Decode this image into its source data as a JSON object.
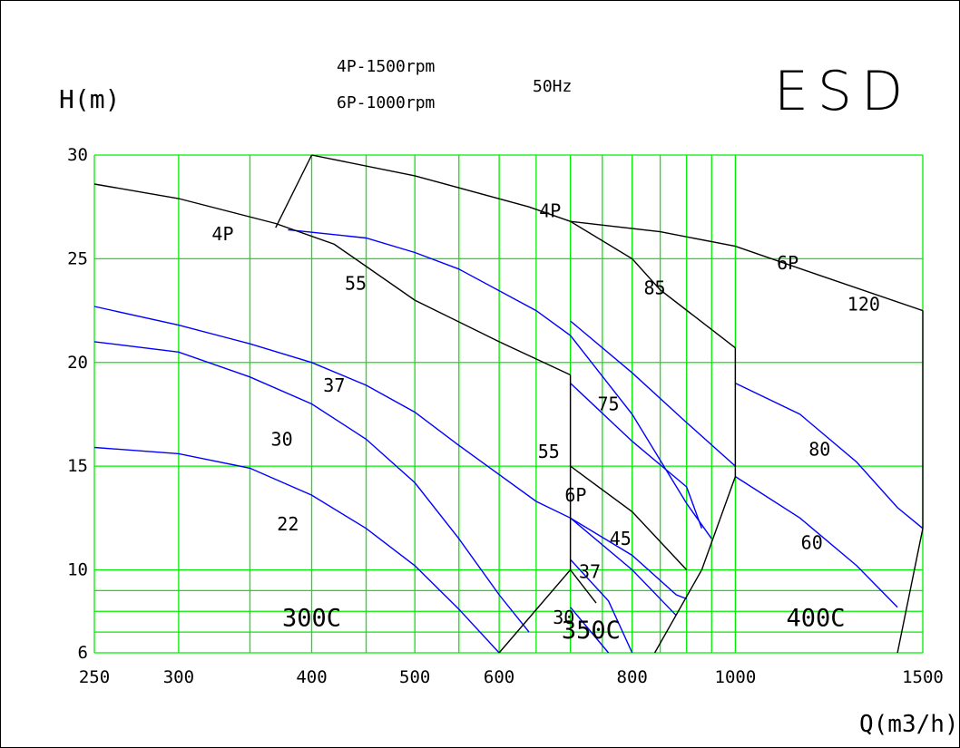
{
  "header": {
    "speed_4p": "4P-1500rpm",
    "speed_6p": "6P-1000rpm",
    "frequency": "50Hz",
    "brand": "ESD"
  },
  "chart_data": {
    "type": "line",
    "xlabel": "Q(m3/h)",
    "ylabel": "H(m)",
    "x_scale": "log",
    "xlim": [
      250,
      1500
    ],
    "ylim": [
      6,
      30
    ],
    "x_ticks": [
      250,
      300,
      400,
      500,
      600,
      800,
      1000,
      1500
    ],
    "y_ticks": [
      6,
      10,
      15,
      20,
      25,
      30
    ],
    "x_gridlines": [
      250,
      300,
      350,
      400,
      450,
      500,
      550,
      600,
      650,
      700,
      750,
      800,
      850,
      900,
      950,
      1000,
      1500
    ],
    "y_gridlines": [
      6,
      7,
      8,
      9,
      10,
      15,
      20,
      25,
      30
    ],
    "grid": true,
    "colors": {
      "grid": "#00ee00",
      "boundary": "#000000",
      "curve": "#0000ff"
    },
    "model_labels": [
      {
        "text": "300C",
        "x": 400,
        "y": 7.3
      },
      {
        "text": "350C",
        "x": 732,
        "y": 6.7
      },
      {
        "text": "400C",
        "x": 1190,
        "y": 7.3
      }
    ],
    "boundaries": [
      {
        "name": "4P",
        "label": "4P",
        "label_at": [
          330,
          25.9
        ],
        "points": [
          [
            250,
            28.6
          ],
          [
            300,
            27.9
          ],
          [
            370,
            26.7
          ],
          [
            420,
            25.7
          ],
          [
            500,
            23.0
          ],
          [
            600,
            21.0
          ],
          [
            700,
            19.4
          ]
        ]
      },
      {
        "name": "",
        "label": "",
        "label_at": null,
        "points": [
          [
            370,
            26.5
          ],
          [
            400,
            30.0
          ]
        ]
      },
      {
        "name": "4P",
        "label": "4P",
        "label_at": [
          670,
          27.0
        ],
        "points": [
          [
            400,
            30.0
          ],
          [
            500,
            29.0
          ],
          [
            640,
            27.5
          ],
          [
            700,
            26.8
          ]
        ]
      },
      {
        "name": "",
        "label": "",
        "label_at": null,
        "points": [
          [
            700,
            26.8
          ],
          [
            800,
            25.0
          ],
          [
            850,
            23.5
          ],
          [
            1000,
            20.7
          ]
        ]
      },
      {
        "name": "6P",
        "label": "6P",
        "label_at": [
          1120,
          24.5
        ],
        "points": [
          [
            700,
            26.8
          ],
          [
            850,
            26.3
          ],
          [
            1000,
            25.6
          ],
          [
            1200,
            24.2
          ],
          [
            1500,
            22.5
          ]
        ]
      },
      {
        "name": "",
        "label": "",
        "label_at": null,
        "points": [
          [
            700,
            19.4
          ],
          [
            700,
            10.0
          ]
        ]
      },
      {
        "name": "6P",
        "label": "6P",
        "label_at": [
          708,
          13.3
        ],
        "points": [
          [
            700,
            15.0
          ],
          [
            800,
            12.8
          ],
          [
            900,
            10.0
          ]
        ]
      },
      {
        "name": "",
        "label": "",
        "label_at": null,
        "points": [
          [
            1000,
            20.7
          ],
          [
            1000,
            14.5
          ]
        ]
      },
      {
        "name": "",
        "label": "",
        "label_at": null,
        "points": [
          [
            1000,
            14.5
          ],
          [
            930,
            10.0
          ],
          [
            840,
            6.0
          ]
        ]
      },
      {
        "name": "",
        "label": "",
        "label_at": null,
        "points": [
          [
            1500,
            22.5
          ],
          [
            1500,
            12.0
          ]
        ]
      },
      {
        "name": "",
        "label": "",
        "label_at": null,
        "points": [
          [
            1500,
            12.0
          ],
          [
            1420,
            6.0
          ]
        ]
      },
      {
        "name": "",
        "label": "",
        "label_at": null,
        "points": [
          [
            700,
            10.0
          ],
          [
            600,
            6.0
          ]
        ]
      },
      {
        "name": "",
        "label": "",
        "label_at": null,
        "points": [
          [
            700,
            10.0
          ],
          [
            740,
            8.4
          ]
        ]
      }
    ],
    "series": [
      {
        "name": "22",
        "label_at": [
          380,
          11.9
        ],
        "points": [
          [
            250,
            15.9
          ],
          [
            300,
            15.6
          ],
          [
            350,
            14.9
          ],
          [
            400,
            13.6
          ],
          [
            450,
            12.0
          ],
          [
            500,
            10.2
          ],
          [
            550,
            8.1
          ],
          [
            600,
            6.0
          ]
        ]
      },
      {
        "name": "30",
        "label_at": [
          375,
          16.0
        ],
        "points": [
          [
            250,
            21.0
          ],
          [
            300,
            20.5
          ],
          [
            350,
            19.3
          ],
          [
            400,
            18.0
          ],
          [
            450,
            16.3
          ],
          [
            500,
            14.2
          ],
          [
            550,
            11.5
          ],
          [
            600,
            8.8
          ],
          [
            640,
            7.0
          ]
        ]
      },
      {
        "name": "37",
        "label_at": [
          420,
          18.6
        ],
        "points": [
          [
            250,
            22.7
          ],
          [
            300,
            21.8
          ],
          [
            350,
            20.9
          ],
          [
            400,
            20.0
          ],
          [
            450,
            18.9
          ],
          [
            500,
            17.6
          ],
          [
            550,
            16.0
          ],
          [
            650,
            13.3
          ],
          [
            700,
            12.5
          ],
          [
            800,
            10.0
          ],
          [
            880,
            7.8
          ]
        ]
      },
      {
        "name": "55",
        "label_at": [
          440,
          23.5
        ],
        "points": [
          [
            380,
            26.4
          ],
          [
            450,
            26.0
          ],
          [
            500,
            25.3
          ],
          [
            550,
            24.5
          ],
          [
            650,
            22.5
          ],
          [
            700,
            21.3
          ],
          [
            800,
            17.5
          ],
          [
            900,
            13.2
          ],
          [
            950,
            11.5
          ]
        ]
      },
      {
        "name": "75",
        "label_at": [
          760,
          17.7
        ],
        "points": [
          [
            700,
            22.0
          ],
          [
            800,
            19.5
          ],
          [
            900,
            17.1
          ],
          [
            1000,
            15.0
          ]
        ]
      },
      {
        "name": "55",
        "label_at": [
          668,
          15.4
        ],
        "points": [
          [
            700,
            19.0
          ],
          [
            800,
            16.2
          ],
          [
            900,
            14.0
          ],
          [
            930,
            12.0
          ]
        ]
      },
      {
        "name": "45",
        "label_at": [
          780,
          11.2
        ],
        "points": [
          [
            700,
            12.5
          ],
          [
            800,
            10.7
          ],
          [
            880,
            8.8
          ],
          [
            900,
            8.6
          ]
        ]
      },
      {
        "name": "37",
        "label_at": [
          730,
          9.6
        ],
        "points": [
          [
            700,
            10.5
          ],
          [
            760,
            8.5
          ],
          [
            800,
            6.0
          ]
        ]
      },
      {
        "name": "30",
        "label_at": [
          690,
          7.4
        ],
        "points": [
          [
            700,
            8.2
          ],
          [
            760,
            6.0
          ]
        ]
      },
      {
        "name": "85",
        "label_at": [
          840,
          23.3
        ],
        "points": []
      },
      {
        "name": "80",
        "label_at": [
          1200,
          15.5
        ],
        "points": [
          [
            1000,
            19.0
          ],
          [
            1150,
            17.5
          ],
          [
            1300,
            15.2
          ],
          [
            1420,
            13.0
          ],
          [
            1500,
            12.0
          ]
        ]
      },
      {
        "name": "60",
        "label_at": [
          1180,
          11.0
        ],
        "points": [
          [
            1000,
            14.5
          ],
          [
            1150,
            12.5
          ],
          [
            1300,
            10.2
          ],
          [
            1420,
            8.2
          ]
        ]
      },
      {
        "name": "120",
        "label_at": [
          1320,
          22.5
        ],
        "points": []
      }
    ]
  }
}
